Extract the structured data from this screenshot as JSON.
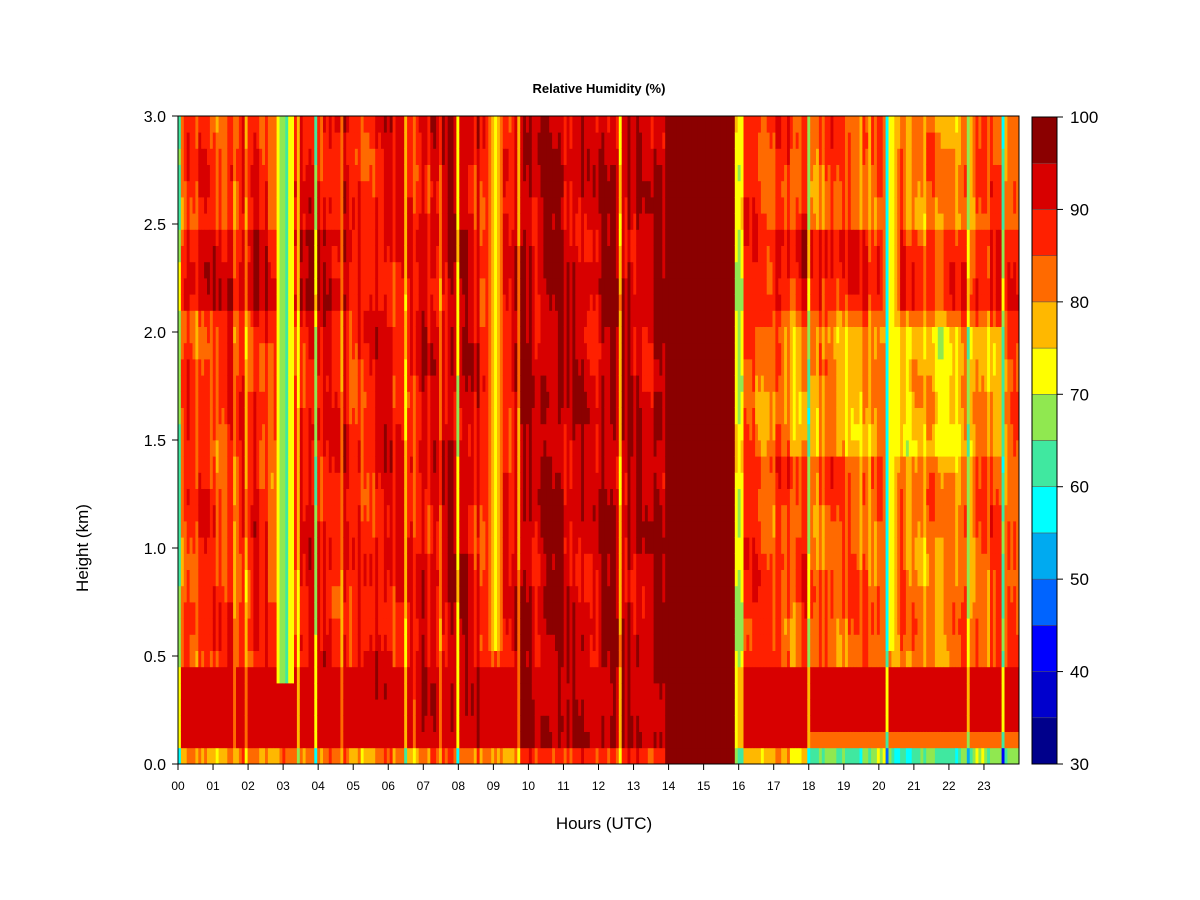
{
  "chart_data": {
    "type": "heatmap",
    "title": "Relative Humidity (%)",
    "xlabel": "Hours (UTC)",
    "ylabel": "Height (km)",
    "x_ticks": [
      "00",
      "01",
      "02",
      "03",
      "04",
      "05",
      "06",
      "07",
      "08",
      "09",
      "10",
      "11",
      "12",
      "13",
      "14",
      "15",
      "16",
      "17",
      "18",
      "19",
      "20",
      "21",
      "22",
      "23"
    ],
    "x_range": [
      0,
      24
    ],
    "y_ticks": [
      "0.0",
      "0.5",
      "1.0",
      "1.5",
      "2.0",
      "2.5",
      "3.0"
    ],
    "ylim": [
      0,
      3
    ],
    "colorbar": {
      "levels": [
        30,
        35,
        40,
        45,
        50,
        55,
        60,
        65,
        70,
        75,
        80,
        85,
        90,
        95,
        100
      ],
      "tick_labels": [
        "30",
        "40",
        "50",
        "60",
        "70",
        "80",
        "90",
        "100"
      ],
      "colors": [
        "#00008B",
        "#0000CD",
        "#0000FF",
        "#0064FF",
        "#00AAF0",
        "#00FFFF",
        "#40E8A0",
        "#90E850",
        "#FFFF00",
        "#FFB800",
        "#FF6A00",
        "#FF2000",
        "#D80000",
        "#8B0000"
      ]
    },
    "features": [
      {
        "kind": "low-level moist layer",
        "x": [
          0,
          24
        ],
        "y": [
          0.05,
          0.45
        ],
        "rh": 95
      },
      {
        "kind": "dry band",
        "x": [
          2.9,
          3.2
        ],
        "y": [
          0.4,
          3.0
        ],
        "rh": 62
      },
      {
        "kind": "dry band",
        "x": [
          8.9,
          9.2
        ],
        "y": [
          0.5,
          3.0
        ],
        "rh": 72
      },
      {
        "kind": "saturated column",
        "x": [
          13.9,
          15.9
        ],
        "y": [
          0,
          3.0
        ],
        "rh": 100
      },
      {
        "kind": "dry band",
        "x": [
          20.2,
          20.5
        ],
        "y": [
          0.5,
          3.0
        ],
        "rh": 70
      }
    ]
  }
}
